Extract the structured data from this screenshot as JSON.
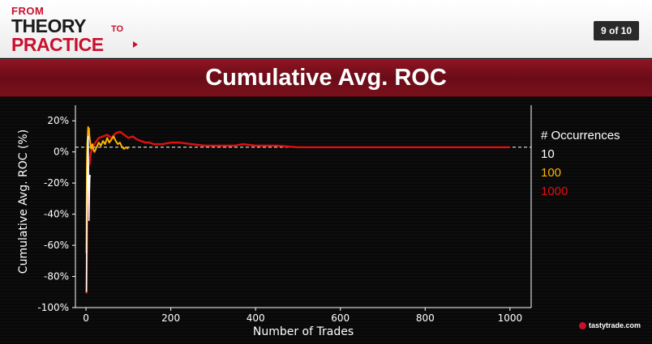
{
  "header": {
    "logo": {
      "from": "FROM",
      "theory": "THEORY",
      "to": "TO",
      "practice": "PRACTICE"
    },
    "page_indicator": "9 of 10"
  },
  "title_band": {
    "title": "Cumulative Avg. ROC"
  },
  "brand": "tastytrade.com",
  "colors": {
    "accent_red": "#c8102e",
    "series_10": "#ffffff",
    "series_100": "#ffb300",
    "series_1000": "#e01010"
  },
  "chart_data": {
    "type": "line",
    "xlabel": "Number of Trades",
    "ylabel": "Cumulative Avg. ROC (%)",
    "xlim": [
      -25,
      1050
    ],
    "ylim": [
      -100,
      30
    ],
    "xticks": [
      0,
      200,
      400,
      600,
      800,
      1000
    ],
    "yticks": [
      20,
      0,
      -20,
      -40,
      -60,
      -80,
      -100
    ],
    "ytick_labels": [
      "20%",
      "0%",
      "-20%",
      "-40%",
      "-60%",
      "-80%",
      "-100%"
    ],
    "reference_line": {
      "y": 3,
      "style": "dashed"
    },
    "legend": {
      "title": "# Occurrences",
      "placement": "right"
    },
    "series": [
      {
        "name": "10",
        "x": [
          1,
          2,
          3,
          4,
          5,
          6,
          7,
          8,
          9,
          10
        ],
        "y": [
          -90,
          -50,
          -20,
          -5,
          10,
          -20,
          -44,
          -25,
          -15,
          -16
        ]
      },
      {
        "name": "100",
        "x": [
          1,
          2,
          3,
          4,
          5,
          6,
          7,
          8,
          10,
          12,
          15,
          18,
          20,
          25,
          30,
          35,
          40,
          45,
          50,
          55,
          60,
          65,
          70,
          75,
          80,
          85,
          90,
          95,
          100
        ],
        "y": [
          -65,
          -10,
          5,
          10,
          16,
          12,
          15,
          10,
          6,
          2,
          5,
          1,
          0,
          3,
          6,
          4,
          7,
          5,
          9,
          6,
          8,
          10,
          7,
          5,
          6,
          3,
          2,
          3,
          2
        ]
      },
      {
        "name": "1000",
        "x": [
          1,
          2,
          3,
          4,
          5,
          6,
          8,
          10,
          12,
          15,
          20,
          25,
          30,
          40,
          50,
          60,
          70,
          80,
          90,
          100,
          110,
          120,
          130,
          140,
          150,
          160,
          170,
          180,
          200,
          220,
          250,
          280,
          300,
          350,
          370,
          400,
          450,
          500,
          550,
          600,
          650,
          700,
          750,
          800,
          850,
          900,
          950,
          1000
        ],
        "y": [
          -91,
          -60,
          -35,
          -20,
          -12,
          -5,
          -8,
          -3,
          0,
          3,
          5,
          7,
          9,
          10,
          11,
          9,
          12,
          13,
          11,
          9,
          10,
          8,
          7,
          6,
          6,
          5,
          5,
          5,
          6,
          6,
          5,
          4,
          4,
          4,
          5,
          4,
          4,
          3,
          3,
          3,
          3,
          3,
          3,
          3,
          3,
          3,
          3,
          3
        ]
      }
    ]
  }
}
